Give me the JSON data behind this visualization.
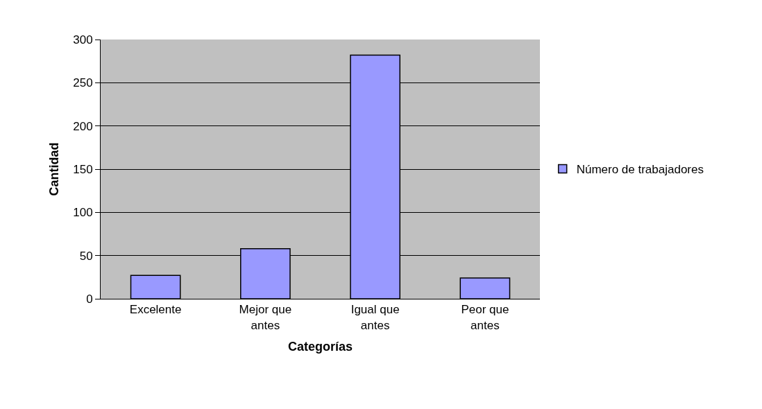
{
  "chart_data": {
    "type": "bar",
    "xlabel": "Categorías",
    "ylabel": "Cantidad",
    "categories": [
      "Excelente",
      "Mejor que antes",
      "Igual que antes",
      "Peor que antes"
    ],
    "series": [
      {
        "name": "Número de trabajadores",
        "color": "#9999ff",
        "values": [
          27,
          58,
          282,
          24
        ]
      }
    ],
    "ylim": [
      0,
      300
    ],
    "yticks": [
      0,
      50,
      100,
      150,
      200,
      250,
      300
    ],
    "grid": "y",
    "legend": "right"
  }
}
